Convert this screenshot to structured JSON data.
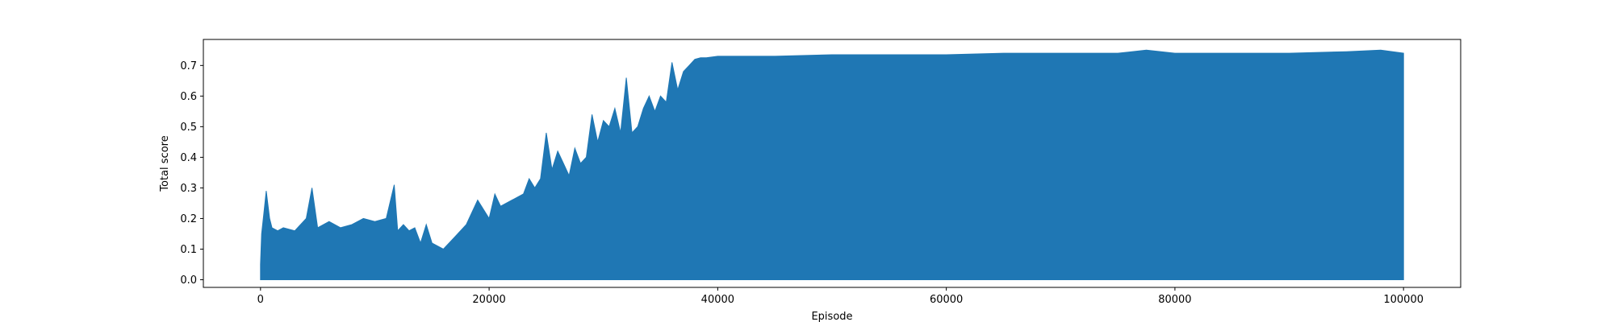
{
  "chart_data": {
    "type": "area",
    "title": "",
    "xlabel": "Episode",
    "ylabel": "Total score",
    "xlim": [
      -5000,
      105000
    ],
    "ylim": [
      -0.025,
      0.785
    ],
    "xticks": [
      0,
      20000,
      40000,
      60000,
      80000,
      100000
    ],
    "xtick_labels": [
      "0",
      "20000",
      "40000",
      "60000",
      "80000",
      "100000"
    ],
    "yticks": [
      0.0,
      0.1,
      0.2,
      0.3,
      0.4,
      0.5,
      0.6,
      0.7
    ],
    "ytick_labels": [
      "0.0",
      "0.1",
      "0.2",
      "0.3",
      "0.4",
      "0.5",
      "0.6",
      "0.7"
    ],
    "grid": false,
    "series_color": "#1f77b4",
    "series": [
      {
        "x": [
          0,
          100,
          300,
          500,
          800,
          1000,
          1500,
          2000,
          3000,
          4000,
          4500,
          5000,
          6000,
          7000,
          8000,
          9000,
          10000,
          11000,
          11700,
          12000,
          12500,
          13000,
          13500,
          14000,
          14500,
          15000,
          16000,
          17000,
          18000,
          18500,
          19000,
          20000,
          20500,
          21000,
          22000,
          23000,
          23500,
          24000,
          24500,
          25000,
          25500,
          26000,
          26500,
          27000,
          27500,
          28000,
          28500,
          29000,
          29500,
          30000,
          30500,
          31000,
          31500,
          32000,
          32500,
          33000,
          33500,
          34000,
          34500,
          35000,
          35500,
          36000,
          36500,
          37000,
          37500,
          38000,
          38500,
          39000,
          40000,
          42000,
          45000,
          50000,
          55000,
          60000,
          65000,
          70000,
          75000,
          77500,
          80000,
          85000,
          90000,
          95000,
          98000,
          100000
        ],
        "y": [
          0.05,
          0.15,
          0.22,
          0.29,
          0.2,
          0.17,
          0.16,
          0.17,
          0.16,
          0.2,
          0.3,
          0.17,
          0.19,
          0.17,
          0.18,
          0.2,
          0.19,
          0.2,
          0.31,
          0.16,
          0.18,
          0.16,
          0.17,
          0.12,
          0.18,
          0.12,
          0.1,
          0.14,
          0.18,
          0.22,
          0.26,
          0.2,
          0.28,
          0.24,
          0.26,
          0.28,
          0.33,
          0.3,
          0.33,
          0.48,
          0.36,
          0.42,
          0.38,
          0.34,
          0.43,
          0.38,
          0.4,
          0.54,
          0.45,
          0.52,
          0.5,
          0.56,
          0.48,
          0.66,
          0.48,
          0.5,
          0.56,
          0.6,
          0.55,
          0.6,
          0.58,
          0.71,
          0.62,
          0.68,
          0.7,
          0.72,
          0.725,
          0.725,
          0.73,
          0.73,
          0.73,
          0.735,
          0.735,
          0.735,
          0.74,
          0.74,
          0.74,
          0.75,
          0.74,
          0.74,
          0.74,
          0.745,
          0.75,
          0.74
        ],
        "y_min": 0.0
      }
    ]
  }
}
